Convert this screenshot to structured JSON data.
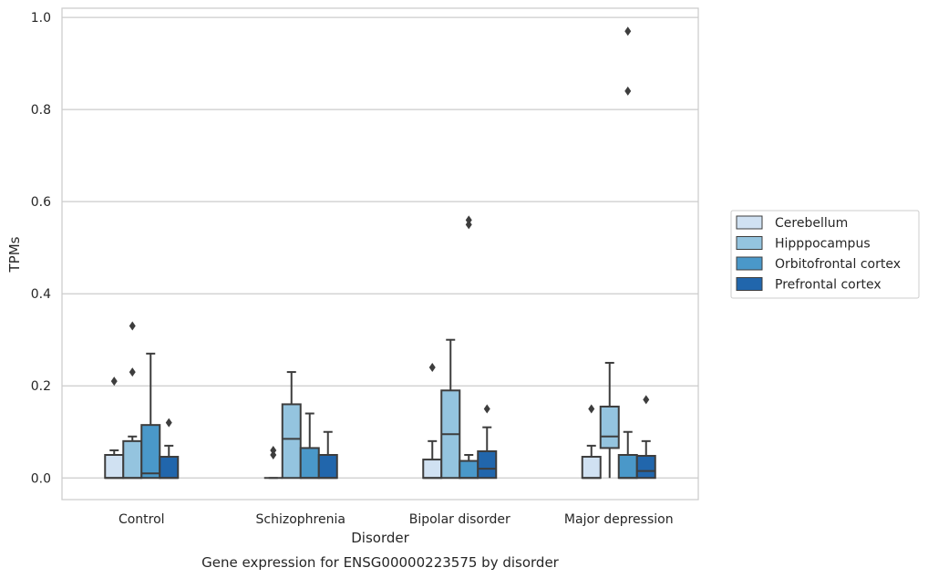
{
  "chart_data": {
    "type": "boxplot",
    "title": "",
    "caption": "Gene expression for ENSG00000223575 by disorder",
    "xlabel": "Disorder",
    "ylabel": "TPMs",
    "ylim": [
      -0.047,
      1.02
    ],
    "yticks": [
      0.0,
      0.2,
      0.4,
      0.6,
      0.8,
      1.0
    ],
    "ytick_labels": [
      "0.0",
      "0.2",
      "0.4",
      "0.6",
      "0.8",
      "1.0"
    ],
    "categories": [
      "Control",
      "Schizophrenia",
      "Bipolar disorder",
      "Major depression"
    ],
    "grid": "horizontal",
    "legend_position": "right",
    "series": [
      {
        "name": "Cerebellum",
        "color": "#d0e1f2",
        "boxes": [
          {
            "whislo": 0.0,
            "q1": 0.0,
            "med": 0.0,
            "q3": 0.05,
            "whishi": 0.06,
            "fliers": [
              0.21
            ]
          },
          {
            "whislo": 0.0,
            "q1": 0.0,
            "med": 0.0,
            "q3": 0.0,
            "whishi": 0.0,
            "fliers": [
              0.05,
              0.06
            ]
          },
          {
            "whislo": 0.0,
            "q1": 0.0,
            "med": 0.0,
            "q3": 0.04,
            "whishi": 0.08,
            "fliers": [
              0.24
            ]
          },
          {
            "whislo": 0.0,
            "q1": 0.0,
            "med": 0.0,
            "q3": 0.046,
            "whishi": 0.07,
            "fliers": [
              0.15
            ]
          }
        ]
      },
      {
        "name": "Hipppocampus",
        "color": "#94c4df",
        "boxes": [
          {
            "whislo": 0.0,
            "q1": 0.0,
            "med": 0.0,
            "q3": 0.08,
            "whishi": 0.09,
            "fliers": [
              0.23,
              0.33
            ]
          },
          {
            "whislo": 0.0,
            "q1": 0.0,
            "med": 0.085,
            "q3": 0.16,
            "whishi": 0.23,
            "fliers": []
          },
          {
            "whislo": 0.0,
            "q1": 0.0,
            "med": 0.095,
            "q3": 0.19,
            "whishi": 0.3,
            "fliers": []
          },
          {
            "whislo": 0.0,
            "q1": 0.065,
            "med": 0.09,
            "q3": 0.155,
            "whishi": 0.25,
            "fliers": []
          }
        ]
      },
      {
        "name": "Orbitofrontal cortex",
        "color": "#4a98c9",
        "boxes": [
          {
            "whislo": 0.0,
            "q1": 0.0,
            "med": 0.01,
            "q3": 0.115,
            "whishi": 0.27,
            "fliers": []
          },
          {
            "whislo": 0.0,
            "q1": 0.0,
            "med": 0.0,
            "q3": 0.065,
            "whishi": 0.14,
            "fliers": []
          },
          {
            "whislo": 0.0,
            "q1": 0.0,
            "med": 0.0,
            "q3": 0.037,
            "whishi": 0.05,
            "fliers": [
              0.55,
              0.56
            ]
          },
          {
            "whislo": 0.0,
            "q1": 0.0,
            "med": 0.0,
            "q3": 0.05,
            "whishi": 0.1,
            "fliers": [
              0.84,
              0.97
            ]
          }
        ]
      },
      {
        "name": "Prefrontal cortex",
        "color": "#2166ac",
        "boxes": [
          {
            "whislo": 0.0,
            "q1": 0.0,
            "med": 0.0,
            "q3": 0.046,
            "whishi": 0.07,
            "fliers": [
              0.12
            ]
          },
          {
            "whislo": 0.0,
            "q1": 0.0,
            "med": 0.0,
            "q3": 0.05,
            "whishi": 0.1,
            "fliers": []
          },
          {
            "whislo": 0.0,
            "q1": 0.0,
            "med": 0.02,
            "q3": 0.058,
            "whishi": 0.11,
            "fliers": [
              0.15
            ]
          },
          {
            "whislo": 0.0,
            "q1": 0.0,
            "med": 0.015,
            "q3": 0.048,
            "whishi": 0.08,
            "fliers": [
              0.17
            ]
          }
        ]
      }
    ]
  }
}
